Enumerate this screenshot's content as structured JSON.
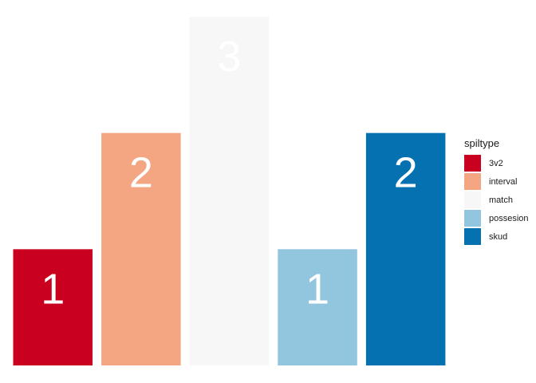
{
  "chart_data": {
    "type": "bar",
    "categories": [
      "3v2",
      "interval",
      "match",
      "possesion",
      "skud"
    ],
    "values": [
      1,
      2,
      3,
      1,
      2
    ],
    "data_labels": [
      "1",
      "2",
      "3",
      "1",
      "2"
    ],
    "colors": [
      "#ca0020",
      "#f4a582",
      "#f7f7f7",
      "#92c5de",
      "#0571b0"
    ],
    "title": "",
    "xlabel": "",
    "ylabel": "",
    "ylim": [
      0,
      3
    ],
    "grid": false,
    "legend": {
      "title": "spiltype",
      "placement": "right",
      "entries": [
        "3v2",
        "interval",
        "match",
        "possesion",
        "skud"
      ]
    }
  }
}
